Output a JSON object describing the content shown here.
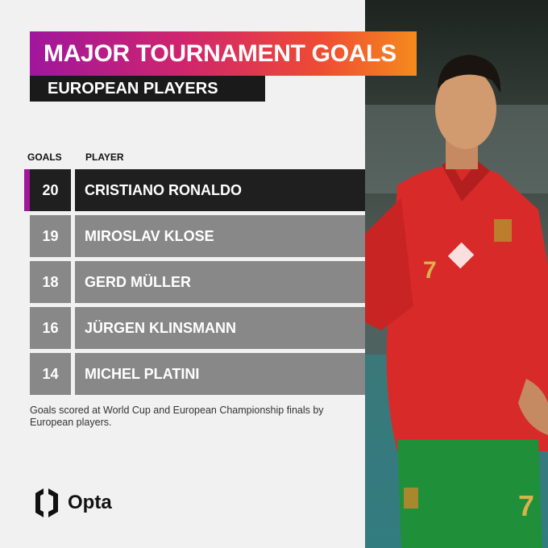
{
  "header": {
    "title": "MAJOR TOURNAMENT GOALS",
    "subtitle": "EUROPEAN PLAYERS"
  },
  "colors": {
    "title_gradient": [
      "#a0169c",
      "#d0256d",
      "#ee4b34",
      "#f68a1e"
    ],
    "highlight_row": "#1f1f1f",
    "default_row": "#888888",
    "accent": "#a0169c"
  },
  "chart_data": {
    "type": "table",
    "columns": [
      "GOALS",
      "PLAYER"
    ],
    "rows": [
      {
        "goals": 20,
        "player": "CRISTIANO RONALDO",
        "highlight": true
      },
      {
        "goals": 19,
        "player": "MIROSLAV KLOSE",
        "highlight": false
      },
      {
        "goals": 18,
        "player": "GERD MÜLLER",
        "highlight": false
      },
      {
        "goals": 16,
        "player": "JÜRGEN KLINSMANN",
        "highlight": false
      },
      {
        "goals": 14,
        "player": "MICHEL PLATINI",
        "highlight": false
      }
    ]
  },
  "footnote": "Goals scored at World Cup and European Championship finals by European players.",
  "brand": {
    "name": "Opta",
    "logo_icon": "opta-logo-icon"
  },
  "photo": {
    "description_icon": "player-photo",
    "shirt_number": "7"
  }
}
